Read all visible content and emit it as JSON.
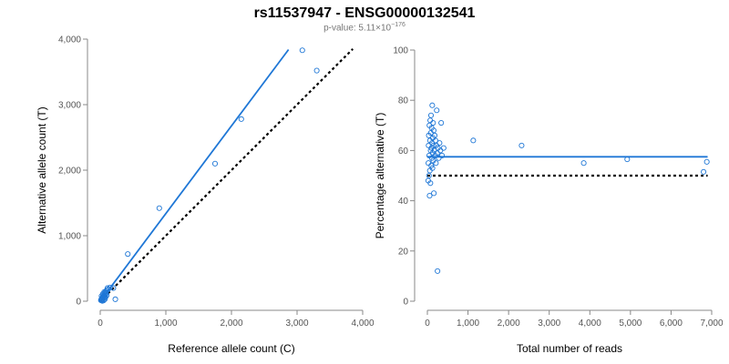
{
  "title": "rs11537947 - ENSG00000132541",
  "subtitle_prefix": "p-value: 5.11×10",
  "subtitle_exponent": "−176",
  "colors": {
    "points": "#1f77d6",
    "fit": "#1f77d6",
    "reference": "#000000",
    "axis": "#888888",
    "tick_text": "#555555"
  },
  "chart_data": [
    {
      "type": "scatter",
      "name": "left",
      "xlabel": "Reference allele count (C)",
      "ylabel": "Alternative allele count (T)",
      "xlim": [
        0,
        4000
      ],
      "ylim": [
        0,
        4000
      ],
      "xticks": [
        0,
        1000,
        2000,
        3000,
        4000
      ],
      "yticks": [
        0,
        1000,
        2000,
        3000,
        4000
      ],
      "xtick_labels": [
        "0",
        "1,000",
        "2,000",
        "3,000",
        "4,000"
      ],
      "ytick_labels": [
        "0",
        "1,000",
        "2,000",
        "3,000",
        "4,000"
      ],
      "points": [
        [
          10,
          15
        ],
        [
          15,
          25
        ],
        [
          20,
          30
        ],
        [
          25,
          45
        ],
        [
          30,
          20
        ],
        [
          35,
          60
        ],
        [
          40,
          50
        ],
        [
          45,
          70
        ],
        [
          50,
          40
        ],
        [
          55,
          90
        ],
        [
          60,
          80
        ],
        [
          65,
          110
        ],
        [
          70,
          60
        ],
        [
          75,
          130
        ],
        [
          80,
          100
        ],
        [
          85,
          150
        ],
        [
          90,
          120
        ],
        [
          100,
          170
        ],
        [
          110,
          200
        ],
        [
          30,
          5
        ],
        [
          50,
          10
        ],
        [
          70,
          30
        ],
        [
          20,
          80
        ],
        [
          40,
          110
        ],
        [
          60,
          140
        ],
        [
          80,
          60
        ],
        [
          100,
          90
        ],
        [
          120,
          180
        ],
        [
          150,
          210
        ],
        [
          200,
          200
        ],
        [
          230,
          30
        ],
        [
          420,
          720
        ],
        [
          900,
          1420
        ],
        [
          1750,
          2100
        ],
        [
          2150,
          2780
        ],
        [
          3080,
          3830
        ],
        [
          3300,
          3520
        ]
      ],
      "fit_line": [
        [
          0,
          0
        ],
        [
          2870,
          3840
        ]
      ],
      "reference_line": [
        [
          0,
          0
        ],
        [
          3850,
          3850
        ]
      ]
    },
    {
      "type": "scatter",
      "name": "right",
      "xlabel": "Total number of reads",
      "ylabel": "Percentage alternative (T)",
      "xlim": [
        0,
        7000
      ],
      "ylim": [
        0,
        100
      ],
      "xticks": [
        0,
        1000,
        2000,
        3000,
        4000,
        5000,
        6000,
        7000
      ],
      "yticks": [
        0,
        20,
        40,
        60,
        80,
        100
      ],
      "xtick_labels": [
        "0",
        "1,000",
        "2,000",
        "3,000",
        "4,000",
        "5,000",
        "6,000",
        "7,000"
      ],
      "ytick_labels": [
        "0",
        "20",
        "40",
        "60",
        "80",
        "100"
      ],
      "points": [
        [
          20,
          48
        ],
        [
          25,
          55
        ],
        [
          30,
          62
        ],
        [
          35,
          66
        ],
        [
          40,
          50
        ],
        [
          45,
          58
        ],
        [
          50,
          70
        ],
        [
          55,
          42
        ],
        [
          60,
          52
        ],
        [
          65,
          64
        ],
        [
          70,
          72
        ],
        [
          75,
          47
        ],
        [
          80,
          60
        ],
        [
          85,
          67
        ],
        [
          90,
          74
        ],
        [
          95,
          54
        ],
        [
          100,
          61
        ],
        [
          105,
          69
        ],
        [
          110,
          57
        ],
        [
          115,
          63
        ],
        [
          120,
          78
        ],
        [
          125,
          53
        ],
        [
          130,
          59
        ],
        [
          135,
          65
        ],
        [
          140,
          71
        ],
        [
          145,
          56
        ],
        [
          150,
          62
        ],
        [
          155,
          68
        ],
        [
          160,
          43
        ],
        [
          170,
          60
        ],
        [
          180,
          66
        ],
        [
          190,
          58
        ],
        [
          200,
          64
        ],
        [
          210,
          55
        ],
        [
          220,
          62
        ],
        [
          230,
          76
        ],
        [
          240,
          59
        ],
        [
          250,
          12
        ],
        [
          260,
          61
        ],
        [
          280,
          57
        ],
        [
          300,
          63
        ],
        [
          320,
          60
        ],
        [
          340,
          71
        ],
        [
          360,
          58
        ],
        [
          400,
          61
        ],
        [
          1130,
          64
        ],
        [
          2320,
          62
        ],
        [
          3850,
          55
        ],
        [
          4920,
          56.5
        ],
        [
          6800,
          51.5
        ],
        [
          6880,
          55.5
        ]
      ],
      "fit_line": [
        [
          0,
          57.5
        ],
        [
          6900,
          57.5
        ]
      ],
      "reference_line": [
        [
          0,
          50
        ],
        [
          6900,
          50
        ]
      ]
    }
  ]
}
